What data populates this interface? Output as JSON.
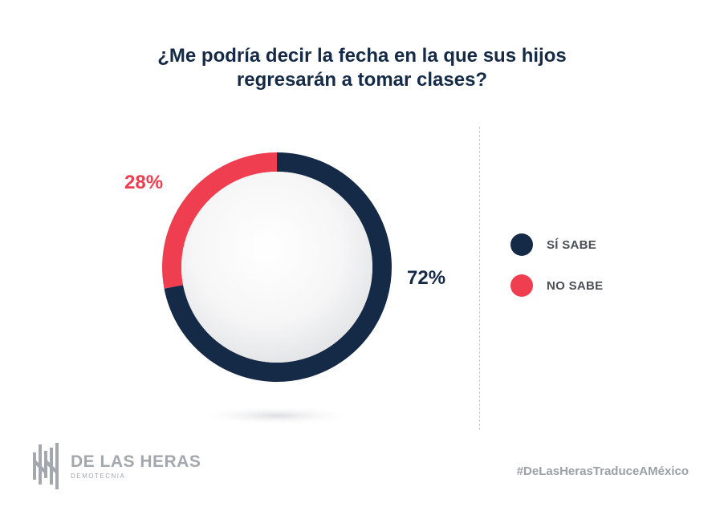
{
  "title": {
    "line1": "¿Me podría decir la fecha en la que sus hijos",
    "line2": "regresarán a tomar clases?"
  },
  "chart_data": {
    "type": "pie",
    "style": "donut",
    "title": "¿Me podría decir la fecha en la que sus hijos regresarán a tomar clases?",
    "categories": [
      "SÍ SABE",
      "NO SABE"
    ],
    "values": [
      72,
      28
    ],
    "value_labels": [
      "72%",
      "28%"
    ],
    "colors": [
      "#152a47",
      "#ef3e4f"
    ],
    "legend_position": "right"
  },
  "legend": [
    {
      "label": "SÍ SABE",
      "color": "#152a47"
    },
    {
      "label": "NO SABE",
      "color": "#ef3e4f"
    }
  ],
  "brand": {
    "name": "DE LAS HERAS",
    "subtitle": "DEMOTECNIA"
  },
  "hashtag": "#DeLasHerasTraduceAMéxico"
}
